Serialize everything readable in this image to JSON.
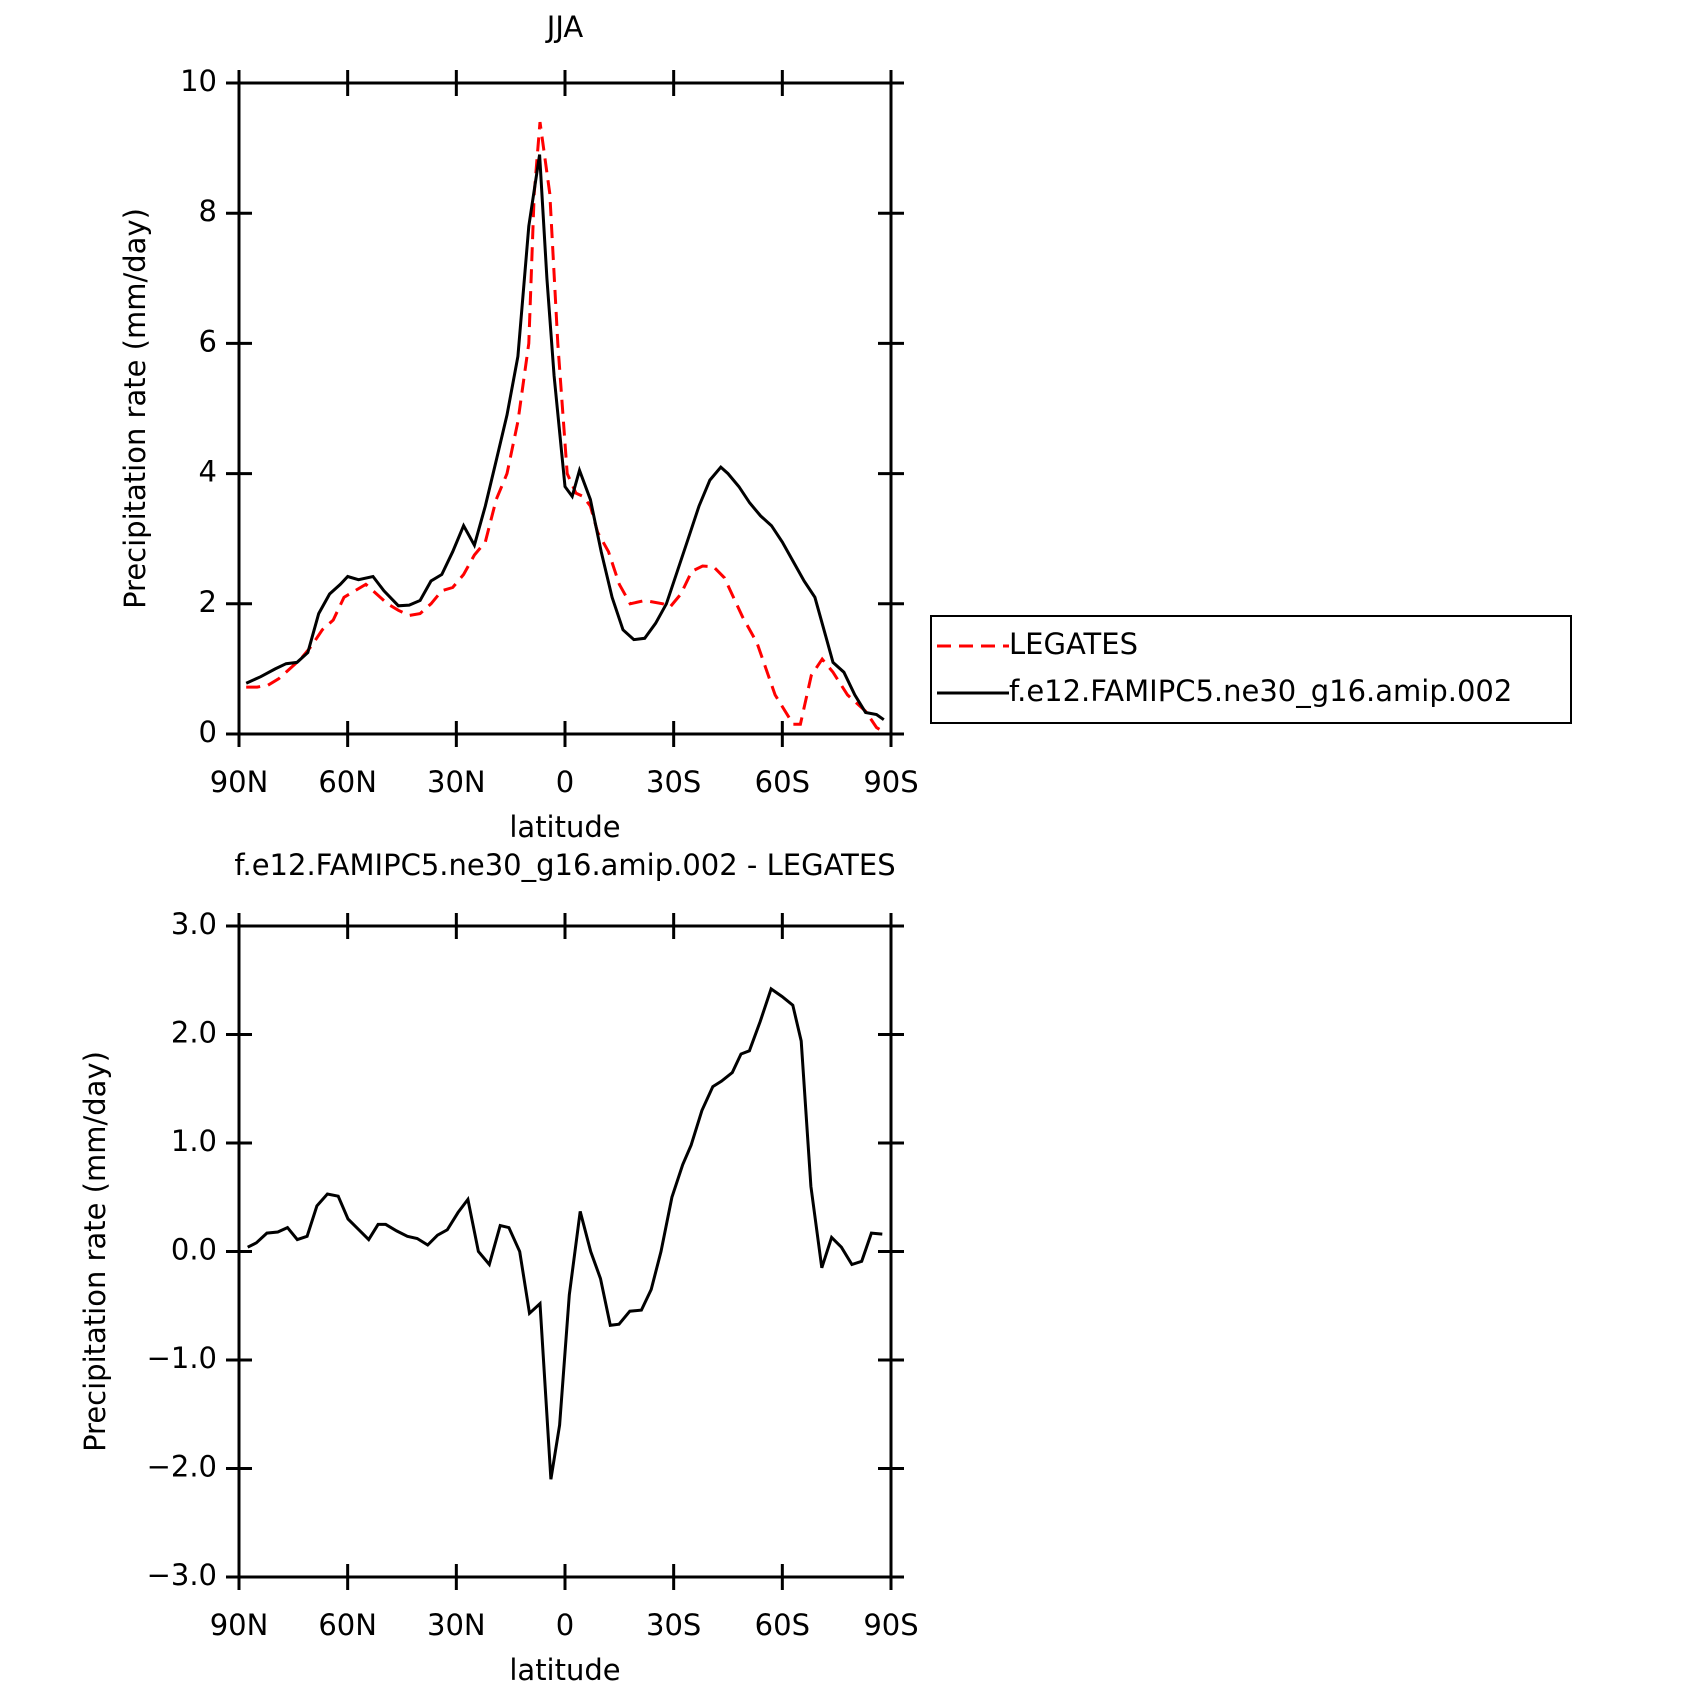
{
  "chart_data": [
    {
      "type": "line",
      "title": "JJA",
      "xlabel": "latitude",
      "ylabel": "Precipitation rate (mm/day)",
      "xlim": [
        90,
        -90
      ],
      "xticks": [
        {
          "value": 90,
          "label": "90N"
        },
        {
          "value": 60,
          "label": "60N"
        },
        {
          "value": 30,
          "label": "30N"
        },
        0,
        {
          "value": -30,
          "label": "30S"
        },
        {
          "value": -60,
          "label": "60S"
        },
        {
          "value": -90,
          "label": "90S"
        }
      ],
      "ylim": [
        0,
        10
      ],
      "yticks": [
        0,
        2,
        4,
        6,
        8,
        10
      ],
      "legend": "right",
      "series": [
        {
          "name": "LEGATES",
          "color": "#ff0000",
          "dashed": true,
          "x": [
            88,
            85,
            82,
            79,
            76,
            73,
            70,
            67,
            64,
            61,
            58,
            55,
            52,
            49,
            46,
            43,
            40,
            37,
            34,
            31,
            28,
            25,
            22,
            19,
            16,
            13,
            10,
            8.5,
            6.9,
            4.2,
            2,
            -0.6,
            -3,
            -5,
            -7,
            -9,
            -12,
            -15,
            -18,
            -22,
            -27,
            -29,
            -32,
            -35,
            -38,
            -41,
            -44,
            -49,
            -53,
            -58,
            -63,
            -65,
            -68,
            -71,
            -74,
            -78,
            -83,
            -86,
            -88
          ],
          "values": [
            0.72,
            0.72,
            0.75,
            0.85,
            1.0,
            1.15,
            1.35,
            1.6,
            1.75,
            2.1,
            2.2,
            2.3,
            2.15,
            2.0,
            1.9,
            1.82,
            1.85,
            2.0,
            2.2,
            2.25,
            2.45,
            2.75,
            2.95,
            3.6,
            4.0,
            4.8,
            6.0,
            8.3,
            9.4,
            8.3,
            6.0,
            4.0,
            3.7,
            3.65,
            3.5,
            3.1,
            2.8,
            2.3,
            2.0,
            2.05,
            2.0,
            1.95,
            2.15,
            2.5,
            2.58,
            2.57,
            2.4,
            1.8,
            1.4,
            0.6,
            0.15,
            0.15,
            0.9,
            1.15,
            0.95,
            0.6,
            0.35,
            0.1,
            0.03
          ]
        },
        {
          "name": "f.e12.FAMIPC5.ne30_g16.amip.002",
          "color": "#000000",
          "dashed": false,
          "x": [
            88,
            84,
            80,
            77,
            74,
            71,
            68,
            65,
            62,
            60,
            57,
            53,
            50,
            46,
            43,
            40,
            37,
            34,
            31,
            28,
            25,
            22,
            19,
            16,
            13,
            10,
            7,
            5,
            3,
            0,
            -2,
            -4,
            -7,
            -10,
            -13,
            -16,
            -19,
            -22,
            -25,
            -28,
            -31,
            -34,
            -37,
            -40,
            -43,
            -45,
            -48,
            -51,
            -54,
            -57,
            -60,
            -63,
            -66,
            -69,
            -72,
            -74,
            -77,
            -80,
            -83,
            -86,
            -88
          ],
          "values": [
            0.78,
            0.88,
            1.0,
            1.08,
            1.1,
            1.25,
            1.85,
            2.15,
            2.3,
            2.42,
            2.37,
            2.42,
            2.2,
            1.97,
            1.98,
            2.05,
            2.35,
            2.45,
            2.8,
            3.2,
            2.9,
            3.5,
            4.2,
            4.9,
            5.8,
            7.8,
            8.9,
            7.0,
            5.5,
            3.8,
            3.65,
            4.05,
            3.6,
            2.8,
            2.1,
            1.6,
            1.45,
            1.47,
            1.7,
            2.0,
            2.5,
            3.0,
            3.5,
            3.9,
            4.1,
            4.0,
            3.8,
            3.55,
            3.35,
            3.2,
            2.95,
            2.65,
            2.35,
            2.1,
            1.5,
            1.1,
            0.95,
            0.6,
            0.33,
            0.3,
            0.22
          ]
        }
      ]
    },
    {
      "type": "line",
      "title": "f.e12.FAMIPC5.ne30_g16.amip.002 - LEGATES",
      "xlabel": "latitude",
      "ylabel": "Precipitation rate (mm/day)",
      "xlim": [
        90,
        -90
      ],
      "xticks": [
        {
          "value": 90,
          "label": "90N"
        },
        {
          "value": 60,
          "label": "60N"
        },
        {
          "value": 30,
          "label": "30N"
        },
        0,
        {
          "value": -30,
          "label": "30S"
        },
        {
          "value": -60,
          "label": "60S"
        },
        {
          "value": -90,
          "label": "90S"
        }
      ],
      "ylim": [
        -3,
        3
      ],
      "yticks": [
        {
          "value": -3,
          "label": "−3.0"
        },
        {
          "value": -2,
          "label": "−2.0"
        },
        {
          "value": -1,
          "label": "−1.0"
        },
        {
          "value": 0,
          "label": "0.0"
        },
        {
          "value": 1,
          "label": "1.0"
        },
        {
          "value": 2,
          "label": "2.0"
        },
        {
          "value": 3,
          "label": "3.0"
        }
      ],
      "series": [
        {
          "color": "#000000",
          "dashed": false,
          "x": [
            87.6,
            85.2,
            82.3,
            79.3,
            76.6,
            73.9,
            71.2,
            68.5,
            65.6,
            62.6,
            59.9,
            56.9,
            54.2,
            51.6,
            49.5,
            46.5,
            43.5,
            40.8,
            37.9,
            35.2,
            32.5,
            29.5,
            26.8,
            23.9,
            20.9,
            17.9,
            15.5,
            12.5,
            9.8,
            6.9,
            3.9,
            1.5,
            -1.2,
            -4.2,
            -7.1,
            -9.8,
            -12.5,
            -14.9,
            -17.9,
            -21.1,
            -23.8,
            -26.5,
            -29.5,
            -32.5,
            -34.8,
            -37.8,
            -40.8,
            -43.2,
            -46.2,
            -48.6,
            -50.9,
            -53.9,
            -56.9,
            -59.9,
            -62.9,
            -65.2,
            -67.9,
            -70.9,
            -73.6,
            -76.3,
            -79.2,
            -81.9,
            -84.6,
            -87.6
          ],
          "values": [
            0.04,
            0.08,
            0.17,
            0.18,
            0.22,
            0.11,
            0.14,
            0.42,
            0.53,
            0.51,
            0.3,
            0.2,
            0.11,
            0.25,
            0.25,
            0.19,
            0.14,
            0.12,
            0.06,
            0.15,
            0.2,
            0.36,
            0.48,
            0.0,
            -0.12,
            0.24,
            0.22,
            0.0,
            -0.57,
            -0.48,
            -2.1,
            -1.6,
            -0.4,
            0.37,
            0.0,
            -0.25,
            -0.68,
            -0.67,
            -0.55,
            -0.54,
            -0.35,
            0.0,
            0.5,
            0.8,
            0.98,
            1.3,
            1.52,
            1.57,
            1.65,
            1.82,
            1.85,
            2.12,
            2.42,
            2.35,
            2.27,
            1.94,
            0.6,
            -0.15,
            0.13,
            0.04,
            -0.12,
            -0.09,
            0.17,
            0.16
          ]
        }
      ]
    }
  ]
}
